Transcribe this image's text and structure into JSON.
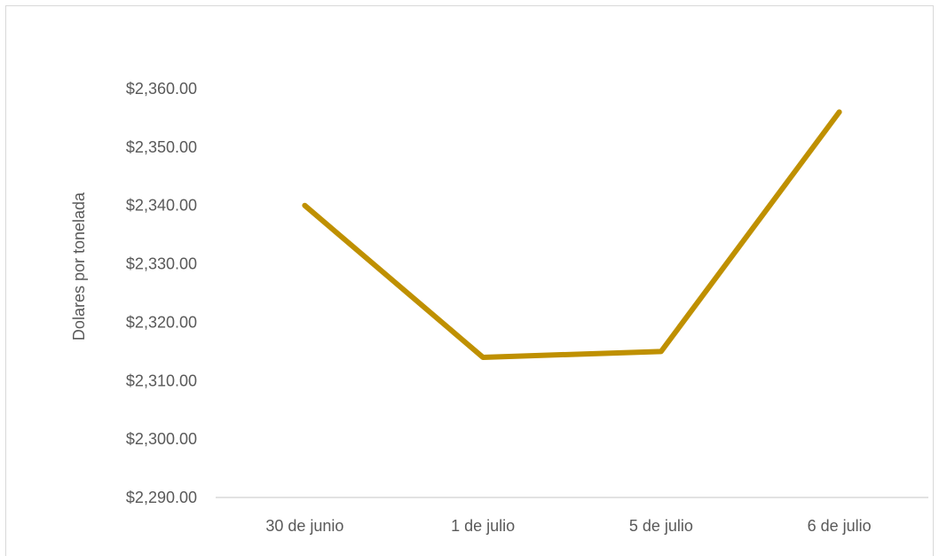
{
  "chart_data": {
    "type": "line",
    "title": "",
    "xlabel": "",
    "ylabel": "Dolares por tonelada",
    "categories": [
      "30 de junio",
      "1 de julio",
      "5 de julio",
      "6 de julio"
    ],
    "series": [
      {
        "values": [
          2340,
          2314,
          2315,
          2356
        ]
      }
    ],
    "y_ticks": [
      2290,
      2300,
      2310,
      2320,
      2330,
      2340,
      2350,
      2360
    ],
    "y_tick_labels": [
      "$2,290.00",
      "$2,300.00",
      "$2,310.00",
      "$2,320.00",
      "$2,330.00",
      "$2,340.00",
      "$2,350.00",
      "$2,360.00"
    ],
    "ylim": [
      2290,
      2360
    ],
    "grid": false,
    "legend": "none",
    "colors": {
      "line": "#BF9000",
      "axis": "#d9d9d9",
      "text": "#595959"
    }
  }
}
